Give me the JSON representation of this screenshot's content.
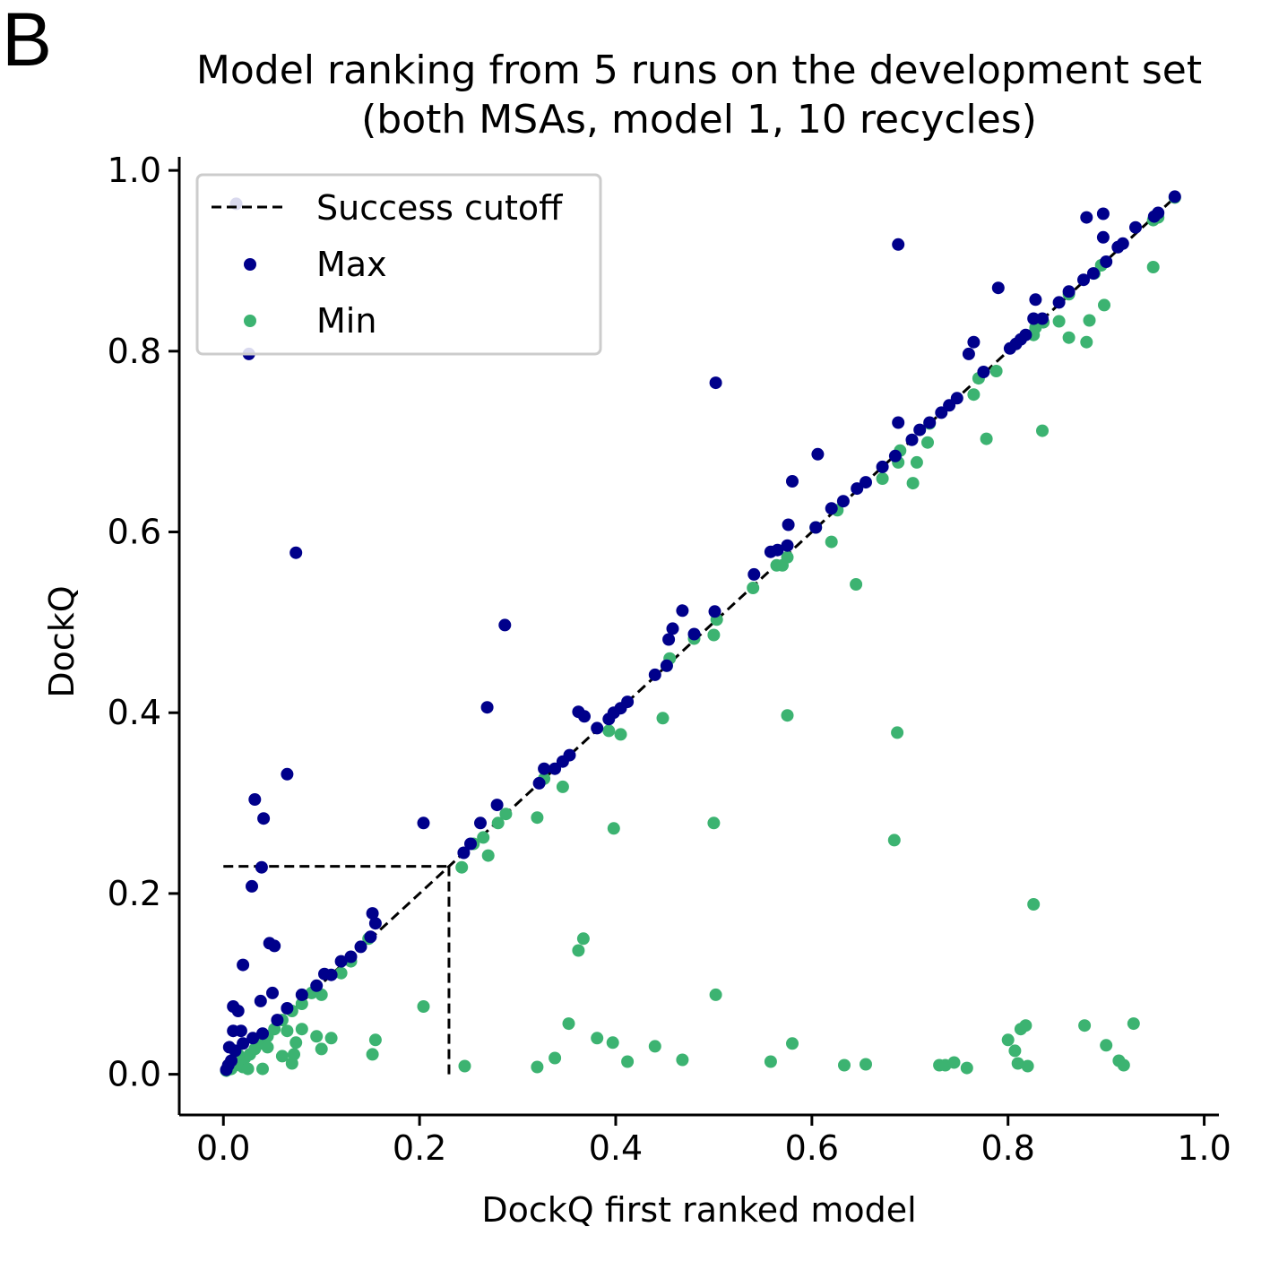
{
  "panel_label": "B",
  "colors": {
    "max": "#00008b",
    "min": "#3cb371",
    "cutoff": "#000000"
  },
  "chart_data": {
    "type": "scatter",
    "title": "Model ranking from 5 runs on the development set",
    "subtitle": "(both MSAs, model 1, 10 recycles)",
    "xlabel": "DockQ first ranked model",
    "ylabel": "DockQ",
    "xlim": [
      -0.045,
      1.015
    ],
    "ylim": [
      -0.045,
      1.015
    ],
    "xticks": [
      "0.0",
      "0.2",
      "0.4",
      "0.6",
      "0.8",
      "1.0"
    ],
    "yticks": [
      "0.0",
      "0.2",
      "0.4",
      "0.6",
      "0.8",
      "1.0"
    ],
    "legend_position": "top-left",
    "legend": [
      "Success cutoff",
      "Max",
      "Min"
    ],
    "success_cutoff": {
      "name": "Success cutoff",
      "value": 0.23,
      "style": "dashed"
    },
    "series": [
      {
        "name": "Max",
        "color": "#00008b",
        "points": [
          [
            0.013,
            0.963
          ],
          [
            0.026,
            0.797
          ],
          [
            0.074,
            0.577
          ],
          [
            0.287,
            0.497
          ],
          [
            0.269,
            0.406
          ],
          [
            0.065,
            0.332
          ],
          [
            0.032,
            0.304
          ],
          [
            0.041,
            0.283
          ],
          [
            0.204,
            0.278
          ],
          [
            0.039,
            0.229
          ],
          [
            0.029,
            0.208
          ],
          [
            0.152,
            0.178
          ],
          [
            0.155,
            0.167
          ],
          [
            0.047,
            0.145
          ],
          [
            0.052,
            0.142
          ],
          [
            0.02,
            0.121
          ],
          [
            0.038,
            0.081
          ],
          [
            0.05,
            0.09
          ],
          [
            0.01,
            0.075
          ],
          [
            0.015,
            0.07
          ],
          [
            0.01,
            0.048
          ],
          [
            0.018,
            0.048
          ],
          [
            0.006,
            0.03
          ],
          [
            0.012,
            0.026
          ],
          [
            0.02,
            0.034
          ],
          [
            0.03,
            0.04
          ],
          [
            0.04,
            0.045
          ],
          [
            0.055,
            0.06
          ],
          [
            0.065,
            0.073
          ],
          [
            0.08,
            0.088
          ],
          [
            0.095,
            0.098
          ],
          [
            0.103,
            0.111
          ],
          [
            0.11,
            0.11
          ],
          [
            0.12,
            0.125
          ],
          [
            0.13,
            0.13
          ],
          [
            0.14,
            0.141
          ],
          [
            0.15,
            0.152
          ],
          [
            0.005,
            0.01
          ],
          [
            0.008,
            0.015
          ],
          [
            0.003,
            0.005
          ],
          [
            0.245,
            0.245
          ],
          [
            0.252,
            0.255
          ],
          [
            0.262,
            0.278
          ],
          [
            0.279,
            0.298
          ],
          [
            0.322,
            0.322
          ],
          [
            0.327,
            0.338
          ],
          [
            0.338,
            0.338
          ],
          [
            0.346,
            0.346
          ],
          [
            0.353,
            0.353
          ],
          [
            0.362,
            0.401
          ],
          [
            0.368,
            0.396
          ],
          [
            0.381,
            0.383
          ],
          [
            0.393,
            0.393
          ],
          [
            0.398,
            0.4
          ],
          [
            0.405,
            0.405
          ],
          [
            0.412,
            0.412
          ],
          [
            0.44,
            0.442
          ],
          [
            0.452,
            0.452
          ],
          [
            0.454,
            0.481
          ],
          [
            0.458,
            0.493
          ],
          [
            0.468,
            0.513
          ],
          [
            0.48,
            0.487
          ],
          [
            0.501,
            0.512
          ],
          [
            0.502,
            0.765
          ],
          [
            0.541,
            0.553
          ],
          [
            0.558,
            0.578
          ],
          [
            0.565,
            0.58
          ],
          [
            0.575,
            0.585
          ],
          [
            0.576,
            0.608
          ],
          [
            0.58,
            0.656
          ],
          [
            0.604,
            0.605
          ],
          [
            0.606,
            0.686
          ],
          [
            0.62,
            0.626
          ],
          [
            0.632,
            0.634
          ],
          [
            0.646,
            0.648
          ],
          [
            0.655,
            0.655
          ],
          [
            0.672,
            0.672
          ],
          [
            0.685,
            0.684
          ],
          [
            0.688,
            0.721
          ],
          [
            0.688,
            0.918
          ],
          [
            0.702,
            0.702
          ],
          [
            0.71,
            0.713
          ],
          [
            0.72,
            0.721
          ],
          [
            0.732,
            0.732
          ],
          [
            0.74,
            0.74
          ],
          [
            0.748,
            0.748
          ],
          [
            0.76,
            0.797
          ],
          [
            0.765,
            0.81
          ],
          [
            0.775,
            0.777
          ],
          [
            0.79,
            0.87
          ],
          [
            0.802,
            0.803
          ],
          [
            0.808,
            0.808
          ],
          [
            0.813,
            0.813
          ],
          [
            0.818,
            0.818
          ],
          [
            0.826,
            0.836
          ],
          [
            0.828,
            0.857
          ],
          [
            0.835,
            0.836
          ],
          [
            0.852,
            0.854
          ],
          [
            0.862,
            0.866
          ],
          [
            0.877,
            0.879
          ],
          [
            0.88,
            0.948
          ],
          [
            0.887,
            0.886
          ],
          [
            0.897,
            0.952
          ],
          [
            0.897,
            0.926
          ],
          [
            0.9,
            0.899
          ],
          [
            0.912,
            0.915
          ],
          [
            0.917,
            0.919
          ],
          [
            0.93,
            0.937
          ],
          [
            0.949,
            0.949
          ],
          [
            0.953,
            0.953
          ],
          [
            0.97,
            0.971
          ]
        ]
      },
      {
        "name": "Min",
        "color": "#3cb371",
        "points": [
          [
            0.003,
            0.004
          ],
          [
            0.008,
            0.006
          ],
          [
            0.012,
            0.01
          ],
          [
            0.018,
            0.012
          ],
          [
            0.022,
            0.018
          ],
          [
            0.027,
            0.022
          ],
          [
            0.032,
            0.028
          ],
          [
            0.038,
            0.034
          ],
          [
            0.045,
            0.042
          ],
          [
            0.052,
            0.05
          ],
          [
            0.06,
            0.06
          ],
          [
            0.07,
            0.07
          ],
          [
            0.08,
            0.078
          ],
          [
            0.09,
            0.09
          ],
          [
            0.1,
            0.088
          ],
          [
            0.12,
            0.112
          ],
          [
            0.13,
            0.125
          ],
          [
            0.148,
            0.15
          ],
          [
            0.01,
            0.015
          ],
          [
            0.015,
            0.022
          ],
          [
            0.02,
            0.008
          ],
          [
            0.025,
            0.006
          ],
          [
            0.04,
            0.006
          ],
          [
            0.045,
            0.03
          ],
          [
            0.06,
            0.02
          ],
          [
            0.065,
            0.048
          ],
          [
            0.07,
            0.012
          ],
          [
            0.072,
            0.022
          ],
          [
            0.074,
            0.035
          ],
          [
            0.08,
            0.05
          ],
          [
            0.095,
            0.042
          ],
          [
            0.1,
            0.028
          ],
          [
            0.11,
            0.04
          ],
          [
            0.152,
            0.022
          ],
          [
            0.155,
            0.038
          ],
          [
            0.204,
            0.075
          ],
          [
            0.246,
            0.009
          ],
          [
            0.243,
            0.229
          ],
          [
            0.255,
            0.255
          ],
          [
            0.265,
            0.262
          ],
          [
            0.27,
            0.242
          ],
          [
            0.28,
            0.278
          ],
          [
            0.288,
            0.288
          ],
          [
            0.32,
            0.008
          ],
          [
            0.32,
            0.284
          ],
          [
            0.327,
            0.327
          ],
          [
            0.338,
            0.018
          ],
          [
            0.346,
            0.318
          ],
          [
            0.352,
            0.056
          ],
          [
            0.362,
            0.137
          ],
          [
            0.367,
            0.15
          ],
          [
            0.381,
            0.04
          ],
          [
            0.393,
            0.38
          ],
          [
            0.397,
            0.035
          ],
          [
            0.398,
            0.272
          ],
          [
            0.405,
            0.376
          ],
          [
            0.412,
            0.014
          ],
          [
            0.44,
            0.031
          ],
          [
            0.448,
            0.394
          ],
          [
            0.452,
            0.452
          ],
          [
            0.455,
            0.46
          ],
          [
            0.468,
            0.016
          ],
          [
            0.48,
            0.482
          ],
          [
            0.5,
            0.486
          ],
          [
            0.5,
            0.278
          ],
          [
            0.502,
            0.088
          ],
          [
            0.503,
            0.503
          ],
          [
            0.54,
            0.538
          ],
          [
            0.558,
            0.014
          ],
          [
            0.564,
            0.563
          ],
          [
            0.57,
            0.563
          ],
          [
            0.575,
            0.572
          ],
          [
            0.575,
            0.397
          ],
          [
            0.58,
            0.034
          ],
          [
            0.604,
            0.605
          ],
          [
            0.62,
            0.589
          ],
          [
            0.626,
            0.624
          ],
          [
            0.633,
            0.01
          ],
          [
            0.645,
            0.542
          ],
          [
            0.655,
            0.011
          ],
          [
            0.672,
            0.659
          ],
          [
            0.684,
            0.259
          ],
          [
            0.687,
            0.378
          ],
          [
            0.688,
            0.677
          ],
          [
            0.69,
            0.69
          ],
          [
            0.703,
            0.654
          ],
          [
            0.707,
            0.677
          ],
          [
            0.718,
            0.699
          ],
          [
            0.72,
            0.72
          ],
          [
            0.73,
            0.01
          ],
          [
            0.736,
            0.01
          ],
          [
            0.745,
            0.013
          ],
          [
            0.758,
            0.007
          ],
          [
            0.765,
            0.752
          ],
          [
            0.77,
            0.77
          ],
          [
            0.778,
            0.703
          ],
          [
            0.788,
            0.778
          ],
          [
            0.8,
            0.038
          ],
          [
            0.807,
            0.026
          ],
          [
            0.81,
            0.012
          ],
          [
            0.813,
            0.05
          ],
          [
            0.818,
            0.054
          ],
          [
            0.82,
            0.009
          ],
          [
            0.826,
            0.188
          ],
          [
            0.826,
            0.818
          ],
          [
            0.828,
            0.826
          ],
          [
            0.835,
            0.712
          ],
          [
            0.836,
            0.832
          ],
          [
            0.852,
            0.833
          ],
          [
            0.862,
            0.815
          ],
          [
            0.862,
            0.863
          ],
          [
            0.878,
            0.054
          ],
          [
            0.88,
            0.81
          ],
          [
            0.883,
            0.834
          ],
          [
            0.888,
            0.886
          ],
          [
            0.895,
            0.895
          ],
          [
            0.898,
            0.851
          ],
          [
            0.9,
            0.032
          ],
          [
            0.913,
            0.015
          ],
          [
            0.918,
            0.01
          ],
          [
            0.928,
            0.056
          ],
          [
            0.948,
            0.893
          ],
          [
            0.948,
            0.945
          ],
          [
            0.953,
            0.948
          ],
          [
            0.97,
            0.97
          ]
        ]
      }
    ]
  }
}
